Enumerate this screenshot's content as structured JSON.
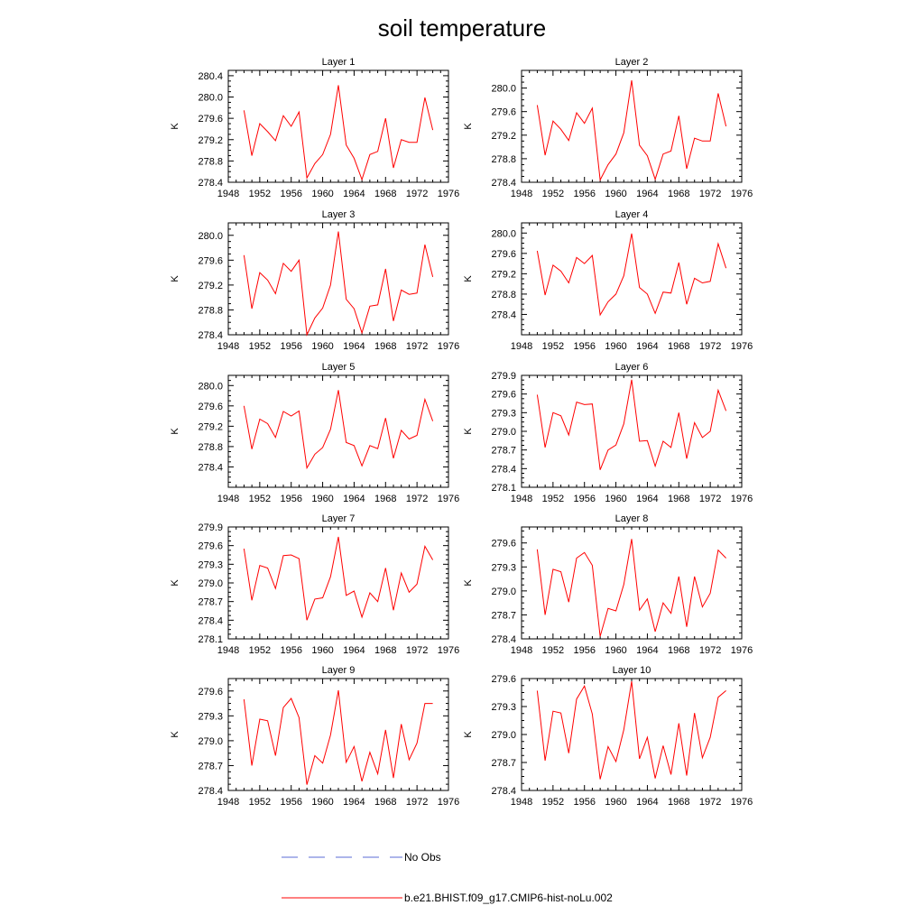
{
  "chart_data": {
    "type": "line",
    "title": "soil temperature",
    "x_ticks": [
      1948,
      1952,
      1956,
      1960,
      1964,
      1968,
      1972,
      1976
    ],
    "xlim": [
      1948,
      1976
    ],
    "legend": {
      "placement": "bottom",
      "entries": [
        {
          "label": "No Obs",
          "color": "#5b6bd6",
          "style": "dashed"
        },
        {
          "label": "b.e21.BHIST.f09_g17.CMIP6-hist-noLu.002",
          "color": "#ff0000",
          "style": "solid"
        }
      ]
    },
    "series_color": "#ff0000",
    "panels": [
      {
        "title": "Layer 1",
        "ylabel": "K",
        "ylim": [
          278.4,
          280.5
        ],
        "y_ticks": [
          "280.4",
          "280.0",
          "279.6",
          "279.2",
          "278.8",
          "278.4"
        ],
        "x": [
          1950,
          1951,
          1952,
          1953,
          1954,
          1955,
          1956,
          1957,
          1958,
          1959,
          1960,
          1961,
          1962,
          1963,
          1964,
          1965,
          1966,
          1967,
          1968,
          1969,
          1970,
          1971,
          1972,
          1973,
          1974
        ],
        "values": [
          279.75,
          278.9,
          279.5,
          279.35,
          279.18,
          279.65,
          279.45,
          279.72,
          278.48,
          278.75,
          278.92,
          279.3,
          280.22,
          279.1,
          278.85,
          278.45,
          278.92,
          278.98,
          279.6,
          278.67,
          279.2,
          279.15,
          279.15,
          279.99,
          279.38
        ]
      },
      {
        "title": "Layer 2",
        "ylabel": "K",
        "ylim": [
          278.4,
          280.3
        ],
        "y_ticks": [
          "280.0",
          "279.6",
          "279.2",
          "278.8",
          "278.4"
        ],
        "x": [
          1950,
          1951,
          1952,
          1953,
          1954,
          1955,
          1956,
          1957,
          1958,
          1959,
          1960,
          1961,
          1962,
          1963,
          1964,
          1965,
          1966,
          1967,
          1968,
          1969,
          1970,
          1971,
          1972,
          1973,
          1974
        ],
        "values": [
          279.71,
          278.86,
          279.44,
          279.3,
          279.11,
          279.58,
          279.4,
          279.66,
          278.44,
          278.7,
          278.88,
          279.24,
          280.13,
          279.03,
          278.85,
          278.45,
          278.88,
          278.93,
          279.53,
          278.63,
          279.15,
          279.1,
          279.1,
          279.91,
          279.35
        ]
      },
      {
        "title": "Layer 3",
        "ylabel": "K",
        "ylim": [
          278.4,
          280.2
        ],
        "y_ticks": [
          "280.0",
          "279.6",
          "279.2",
          "278.8",
          "278.4"
        ],
        "x": [
          1950,
          1951,
          1952,
          1953,
          1954,
          1955,
          1956,
          1957,
          1958,
          1959,
          1960,
          1961,
          1962,
          1963,
          1964,
          1965,
          1966,
          1967,
          1968,
          1969,
          1970,
          1971,
          1972,
          1973,
          1974
        ],
        "values": [
          279.68,
          278.82,
          279.4,
          279.28,
          279.06,
          279.55,
          279.42,
          279.6,
          278.4,
          278.67,
          278.83,
          279.2,
          280.06,
          278.97,
          278.82,
          278.43,
          278.86,
          278.88,
          279.46,
          278.62,
          279.12,
          279.05,
          279.07,
          279.85,
          279.33
        ]
      },
      {
        "title": "Layer 4",
        "ylabel": "K",
        "ylim": [
          278.0,
          280.2
        ],
        "y_ticks": [
          "280.0",
          "279.6",
          "279.2",
          "278.8",
          "278.4"
        ],
        "x": [
          1950,
          1951,
          1952,
          1953,
          1954,
          1955,
          1956,
          1957,
          1958,
          1959,
          1960,
          1961,
          1962,
          1963,
          1964,
          1965,
          1966,
          1967,
          1968,
          1969,
          1970,
          1971,
          1972,
          1973,
          1974
        ],
        "values": [
          279.65,
          278.78,
          279.37,
          279.25,
          279.02,
          279.52,
          279.4,
          279.56,
          278.39,
          278.65,
          278.8,
          279.16,
          279.99,
          278.93,
          278.8,
          278.42,
          278.84,
          278.82,
          279.42,
          278.6,
          279.11,
          279.02,
          279.05,
          279.79,
          279.31
        ]
      },
      {
        "title": "Layer 5",
        "ylabel": "K",
        "ylim": [
          278.0,
          280.2
        ],
        "y_ticks": [
          "280.0",
          "279.6",
          "279.2",
          "278.8",
          "278.4"
        ],
        "x": [
          1950,
          1951,
          1952,
          1953,
          1954,
          1955,
          1956,
          1957,
          1958,
          1959,
          1960,
          1961,
          1962,
          1963,
          1964,
          1965,
          1966,
          1967,
          1968,
          1969,
          1970,
          1971,
          1972,
          1973,
          1974
        ],
        "values": [
          279.6,
          278.75,
          279.34,
          279.25,
          278.98,
          279.49,
          279.4,
          279.5,
          278.38,
          278.65,
          278.78,
          279.14,
          279.91,
          278.88,
          278.82,
          278.42,
          278.82,
          278.76,
          279.36,
          278.57,
          279.12,
          278.95,
          279.02,
          279.73,
          279.3
        ]
      },
      {
        "title": "Layer 6",
        "ylabel": "K",
        "ylim": [
          278.1,
          279.9
        ],
        "y_ticks": [
          "279.9",
          "279.6",
          "279.3",
          "279.0",
          "278.7",
          "278.4",
          "278.1"
        ],
        "x": [
          1950,
          1951,
          1952,
          1953,
          1954,
          1955,
          1956,
          1957,
          1958,
          1959,
          1960,
          1961,
          1962,
          1963,
          1964,
          1965,
          1966,
          1967,
          1968,
          1969,
          1970,
          1971,
          1972,
          1973,
          1974
        ],
        "values": [
          279.59,
          278.74,
          279.3,
          279.25,
          278.94,
          279.47,
          279.43,
          279.44,
          278.38,
          278.7,
          278.78,
          279.12,
          279.83,
          278.84,
          278.85,
          278.44,
          278.84,
          278.74,
          279.3,
          278.56,
          279.14,
          278.9,
          279.0,
          279.66,
          279.33
        ]
      },
      {
        "title": "Layer 7",
        "ylabel": "K",
        "ylim": [
          278.1,
          279.9
        ],
        "y_ticks": [
          "279.9",
          "279.6",
          "279.3",
          "279.0",
          "278.7",
          "278.4",
          "278.1"
        ],
        "x": [
          1950,
          1951,
          1952,
          1953,
          1954,
          1955,
          1956,
          1957,
          1958,
          1959,
          1960,
          1961,
          1962,
          1963,
          1964,
          1965,
          1966,
          1967,
          1968,
          1969,
          1970,
          1971,
          1972,
          1973,
          1974
        ],
        "values": [
          279.55,
          278.72,
          279.28,
          279.24,
          278.91,
          279.44,
          279.45,
          279.39,
          278.4,
          278.74,
          278.76,
          279.1,
          279.74,
          278.8,
          278.87,
          278.45,
          278.84,
          278.7,
          279.24,
          278.56,
          279.16,
          278.85,
          278.98,
          279.59,
          279.37
        ]
      },
      {
        "title": "Layer 8",
        "ylabel": "K",
        "ylim": [
          278.4,
          279.8
        ],
        "y_ticks": [
          "279.6",
          "279.3",
          "279.0",
          "278.7",
          "278.4"
        ],
        "x": [
          1950,
          1951,
          1952,
          1953,
          1954,
          1955,
          1956,
          1957,
          1958,
          1959,
          1960,
          1961,
          1962,
          1963,
          1964,
          1965,
          1966,
          1967,
          1968,
          1969,
          1970,
          1971,
          1972,
          1973,
          1974
        ],
        "values": [
          279.52,
          278.7,
          279.27,
          279.24,
          278.86,
          279.41,
          279.48,
          279.32,
          278.43,
          278.78,
          278.75,
          279.08,
          279.65,
          278.76,
          278.9,
          278.49,
          278.85,
          278.72,
          279.18,
          278.55,
          279.18,
          278.8,
          278.97,
          279.51,
          279.41
        ]
      },
      {
        "title": "Layer 9",
        "ylabel": "K",
        "ylim": [
          278.4,
          279.75
        ],
        "y_ticks": [
          "279.6",
          "279.3",
          "279.0",
          "278.7",
          "278.4"
        ],
        "x": [
          1950,
          1951,
          1952,
          1953,
          1954,
          1955,
          1956,
          1957,
          1958,
          1959,
          1960,
          1961,
          1962,
          1963,
          1964,
          1965,
          1966,
          1967,
          1968,
          1969,
          1970,
          1971,
          1972,
          1973,
          1974
        ],
        "values": [
          279.5,
          278.7,
          279.26,
          279.24,
          278.82,
          279.4,
          279.51,
          279.28,
          278.47,
          278.82,
          278.73,
          279.07,
          279.61,
          278.74,
          278.93,
          278.51,
          278.86,
          278.6,
          279.13,
          278.55,
          279.2,
          278.77,
          278.97,
          279.45,
          279.45
        ]
      },
      {
        "title": "Layer 10",
        "ylabel": "K",
        "ylim": [
          278.4,
          279.6
        ],
        "y_ticks": [
          "279.6",
          "279.3",
          "279.0",
          "278.7",
          "278.4"
        ],
        "x": [
          1950,
          1951,
          1952,
          1953,
          1954,
          1955,
          1956,
          1957,
          1958,
          1959,
          1960,
          1961,
          1962,
          1963,
          1964,
          1965,
          1966,
          1967,
          1968,
          1969,
          1970,
          1971,
          1972,
          1973,
          1974
        ],
        "values": [
          279.47,
          278.72,
          279.25,
          279.23,
          278.8,
          279.38,
          279.52,
          279.22,
          278.52,
          278.87,
          278.71,
          279.05,
          279.57,
          278.74,
          278.97,
          278.53,
          278.88,
          278.57,
          279.12,
          278.56,
          279.23,
          278.75,
          278.97,
          279.4,
          279.47
        ]
      }
    ]
  }
}
